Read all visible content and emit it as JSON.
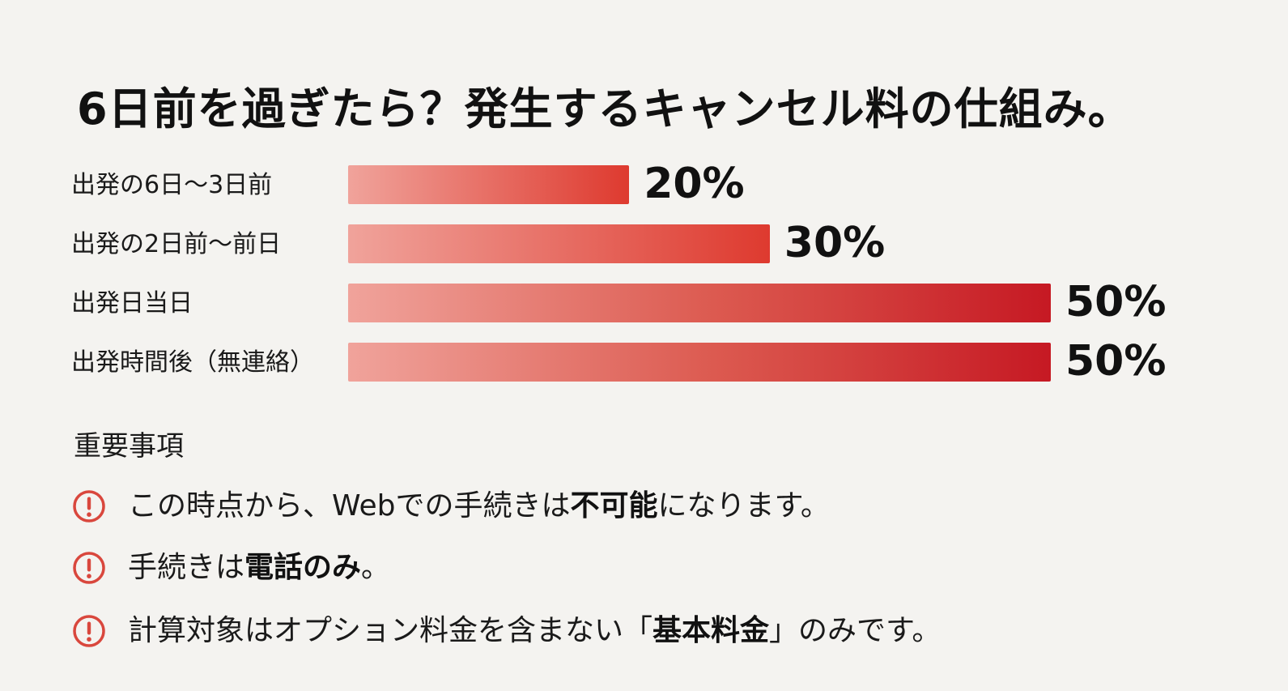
{
  "title": "6日前を過ぎたら？発生するキャンセル料の仕組み。",
  "colors": {
    "background": "#f4f3f0",
    "bar_light": "#f0a39b",
    "bar_dark": "#c61923",
    "warning_icon": "#d9473d"
  },
  "chart_data": {
    "type": "bar",
    "orientation": "horizontal",
    "title": "6日前を過ぎたら？発生するキャンセル料の仕組み。",
    "categories": [
      "出発の6日〜3日前",
      "出発の2日前〜前日",
      "出発日当日",
      "出発時間後（無連絡）"
    ],
    "values": [
      20,
      30,
      50,
      50
    ],
    "value_labels": [
      "20%",
      "30%",
      "50%",
      "50%"
    ],
    "xlim": [
      0,
      50
    ],
    "xlabel": "",
    "ylabel": "",
    "grid": false,
    "legend": "none"
  },
  "notes": {
    "heading": "重要事項",
    "icon": "warning-icon",
    "items": [
      {
        "before": "この時点から、Webでの手続きは",
        "strong": "不可能",
        "after": "になります。"
      },
      {
        "before": "手続きは",
        "strong": "電話のみ",
        "after": "。"
      },
      {
        "before": "計算対象はオプション料金を含まない「",
        "strong": "基本料金",
        "after": "」のみです。"
      }
    ]
  }
}
